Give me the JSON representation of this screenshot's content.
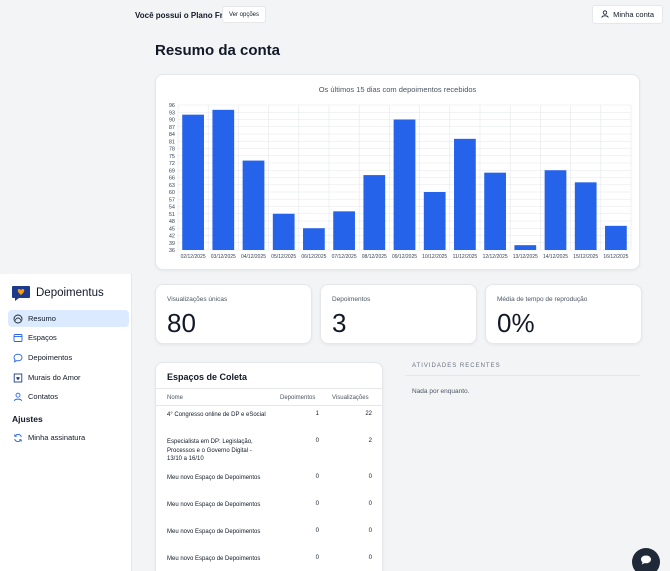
{
  "header": {
    "plan_text": "Você possui o Plano Free",
    "plan_button": "Ver opções",
    "account_button": "Minha conta"
  },
  "page_title": "Resumo da conta",
  "chart_data": {
    "type": "bar",
    "title": "Os últimos 15 dias com depoimentos recebidos",
    "categories": [
      "02/12/2025",
      "03/12/2025",
      "04/12/2025",
      "05/12/2025",
      "06/12/2025",
      "07/12/2025",
      "08/12/2025",
      "09/12/2025",
      "10/12/2025",
      "11/12/2025",
      "12/12/2025",
      "13/12/2025",
      "14/12/2025",
      "15/12/2025",
      "16/12/2025"
    ],
    "values": [
      92,
      94,
      73,
      51,
      45,
      52,
      67,
      90,
      60,
      82,
      68,
      38,
      69,
      64,
      46
    ],
    "ylim": [
      36,
      96
    ],
    "yticks": [
      36,
      39,
      42,
      45,
      48,
      51,
      54,
      57,
      60,
      63,
      66,
      69,
      72,
      75,
      78,
      81,
      84,
      87,
      90,
      93,
      96
    ],
    "color": "#2563eb",
    "grid": true
  },
  "stats": [
    {
      "label": "Visualizações únicas",
      "value": "80"
    },
    {
      "label": "Depoimentos",
      "value": "3"
    },
    {
      "label": "Média de tempo de reprodução",
      "value": "0%"
    }
  ],
  "sidebar": {
    "brand": "Depoimentus",
    "items": [
      {
        "label": "Resumo",
        "icon": "dashboard-icon",
        "active": true
      },
      {
        "label": "Espaços",
        "icon": "window-icon",
        "active": false
      },
      {
        "label": "Depoimentos",
        "icon": "chat-bubble-icon",
        "active": false
      },
      {
        "label": "Murais do Amor",
        "icon": "heart-frame-icon",
        "active": false
      },
      {
        "label": "Contatos",
        "icon": "user-icon",
        "active": false
      }
    ],
    "section_settings": "Ajustes",
    "settings_items": [
      {
        "label": "Minha assinatura",
        "icon": "refresh-icon"
      }
    ]
  },
  "spaces": {
    "title": "Espaços de Coleta",
    "columns": [
      "Nome",
      "Depoimentos",
      "Visualizações"
    ],
    "rows": [
      {
        "name": "4° Congresso online de DP e eSocial",
        "depoimentos": "1",
        "visualizacoes": "22"
      },
      {
        "name": "Especialista em DP: Legislação, Processos e o Governo Digital - 13/10 a 16/10",
        "depoimentos": "0",
        "visualizacoes": "2"
      },
      {
        "name": "Meu novo Espaço de Depoimentos",
        "depoimentos": "0",
        "visualizacoes": "0"
      },
      {
        "name": "Meu novo Espaço de Depoimentos",
        "depoimentos": "0",
        "visualizacoes": "0"
      },
      {
        "name": "Meu novo Espaço de Depoimentos",
        "depoimentos": "0",
        "visualizacoes": "0"
      },
      {
        "name": "Meu novo Espaço de Depoimentos",
        "depoimentos": "0",
        "visualizacoes": "0"
      }
    ]
  },
  "activity": {
    "title": "ATIVIDADES RECENTES",
    "empty": "Nada por enquanto."
  }
}
